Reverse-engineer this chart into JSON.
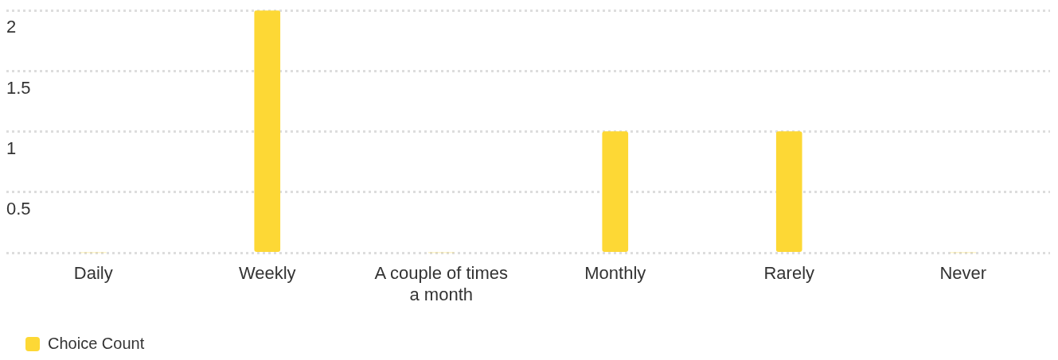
{
  "chart_data": {
    "type": "bar",
    "categories": [
      "Daily",
      "Weekly",
      "A couple of times a month",
      "Monthly",
      "Rarely",
      "Never"
    ],
    "series": [
      {
        "name": "Choice Count",
        "color": "#fdd835",
        "values": [
          0,
          2,
          0,
          1,
          1,
          0
        ]
      }
    ],
    "ylim": [
      0,
      2
    ],
    "yticks": [
      {
        "value": 0,
        "label": null
      },
      0.5,
      1,
      1.5,
      2
    ],
    "grid": "y",
    "legend": "bottom left"
  }
}
